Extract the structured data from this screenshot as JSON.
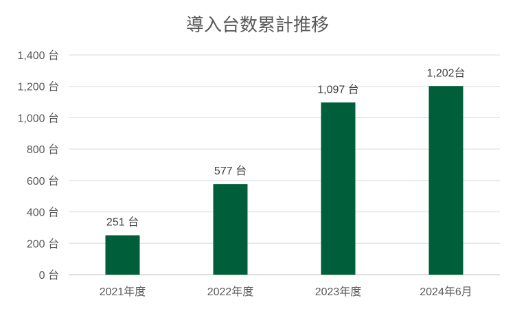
{
  "chart_data": {
    "type": "bar",
    "title": "導入台数累計推移",
    "categories": [
      "2021年度",
      "2022年度",
      "2023年度",
      "2024年6月"
    ],
    "values": [
      251,
      577,
      1097,
      1202
    ],
    "data_labels": [
      "251 台",
      "577 台",
      "1,097 台",
      "1,202台"
    ],
    "ylim": [
      0,
      1400
    ],
    "yticks": [
      0,
      200,
      400,
      600,
      800,
      1000,
      1200,
      1400
    ],
    "ytick_labels": [
      "0 台",
      "200 台",
      "400 台",
      "600 台",
      "800 台",
      "1,000 台",
      "1,200 台",
      "1,400 台"
    ],
    "bar_color": "#005f3b",
    "grid": true,
    "legend": "none"
  }
}
